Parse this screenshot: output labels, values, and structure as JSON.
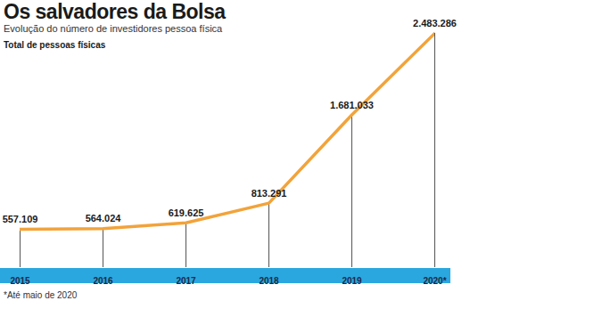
{
  "chart_data": {
    "type": "line",
    "title": "Os salvadores da Bolsa",
    "subtitle": "Evolução do número de investidores pessoa física",
    "ylabel": "Total de pessoas físicas",
    "caption": "*Até maio de 2020",
    "categories": [
      "2015",
      "2016",
      "2017",
      "2018",
      "2019",
      "2020*"
    ],
    "values": [
      557109,
      564024,
      619625,
      813291,
      1681033,
      2483286
    ],
    "value_labels": [
      "557.109",
      "564.024",
      "619.625",
      "813.291",
      "1.681.033",
      "2.483.286"
    ],
    "color": "#f2a33a",
    "ylim": [
      180000,
      2500000
    ],
    "data_labels": true,
    "tick_labels": "x"
  }
}
